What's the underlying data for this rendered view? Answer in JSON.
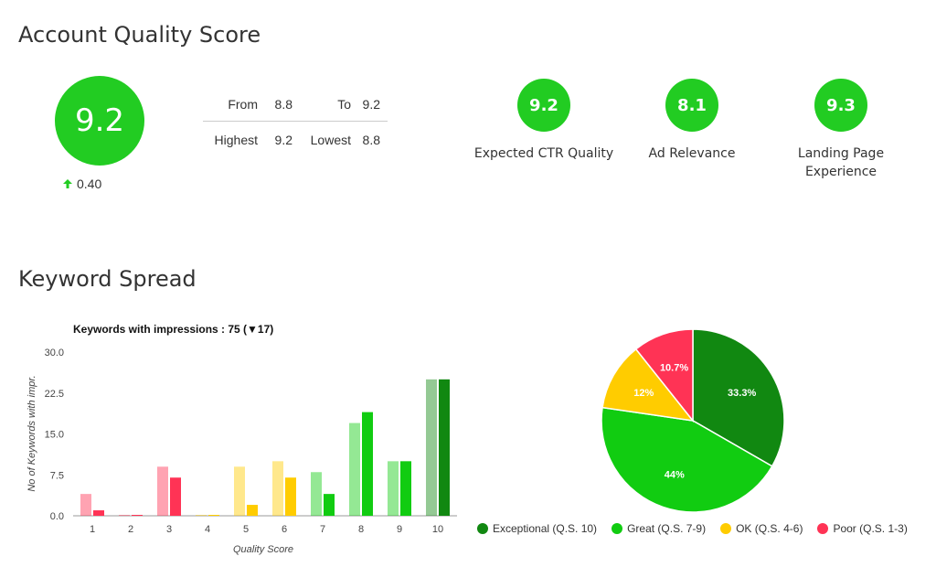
{
  "account": {
    "title": "Account Quality Score",
    "score": "9.2",
    "delta": "0.40",
    "from_label": "From",
    "from_value": "8.8",
    "to_label": "To",
    "to_value": "9.2",
    "highest_label": "Highest",
    "highest_value": "9.2",
    "lowest_label": "Lowest",
    "lowest_value": "8.8"
  },
  "components": [
    {
      "value": "9.2",
      "label": "Expected CTR Quality"
    },
    {
      "value": "8.1",
      "label": "Ad Relevance"
    },
    {
      "value": "9.3",
      "label": "Landing Page Experience"
    }
  ],
  "keyword": {
    "title": "Keyword Spread"
  },
  "colors": {
    "score_green": "#22cc22",
    "poor": "#ff3355",
    "ok": "#ffcc00",
    "great": "#11cc11",
    "exceptional": "#118811"
  },
  "chart_data": [
    {
      "type": "bar",
      "title": "Keywords with impressions : 75 (▼17)",
      "xlabel": "Quality Score",
      "ylabel": "No of Keywords with impr.",
      "categories": [
        "1",
        "2",
        "3",
        "4",
        "5",
        "6",
        "7",
        "8",
        "9",
        "10"
      ],
      "ylim": [
        0,
        30
      ],
      "yticks": [
        "0.0",
        "7.5",
        "15.0",
        "22.5",
        "30.0"
      ],
      "series": [
        {
          "values": [
            4,
            0,
            9,
            0,
            9,
            10,
            8,
            17,
            10,
            25
          ]
        },
        {
          "values": [
            1,
            0,
            7,
            0,
            2,
            7,
            4,
            19,
            10,
            25
          ]
        }
      ],
      "category_colors": [
        "#ff3355",
        "#ff3355",
        "#ff3355",
        "#ffcc00",
        "#ffcc00",
        "#ffcc00",
        "#11cc11",
        "#11cc11",
        "#11cc11",
        "#118811"
      ]
    },
    {
      "type": "pie",
      "slices": [
        {
          "label": "Exceptional (Q.S. 10)",
          "value": 33.3,
          "text": "33.3%",
          "color": "#118811"
        },
        {
          "label": "Great (Q.S. 7-9)",
          "value": 44,
          "text": "44%",
          "color": "#11cc11"
        },
        {
          "label": "OK (Q.S. 4-6)",
          "value": 12,
          "text": "12%",
          "color": "#ffcc00"
        },
        {
          "label": "Poor (Q.S. 1-3)",
          "value": 10.7,
          "text": "10.7%",
          "color": "#ff3355"
        }
      ],
      "legend": "bottom"
    }
  ]
}
